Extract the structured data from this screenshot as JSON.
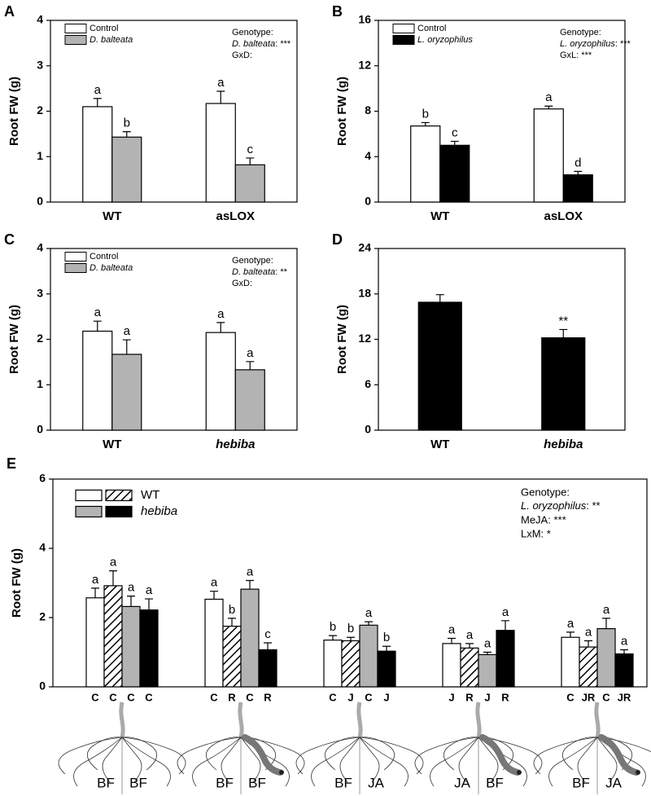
{
  "chart_data": [
    {
      "type": "bar",
      "panel": "A",
      "ylabel": "Root FW (g)",
      "categories": [
        "WT",
        "asLOX"
      ],
      "category_italic": [
        false,
        false
      ],
      "ylim": [
        0,
        4
      ],
      "yticks": [
        0,
        1,
        2,
        3,
        4
      ],
      "series": [
        {
          "name": "Control",
          "color": "#ffffff",
          "values": [
            2.1,
            2.17
          ],
          "errors": [
            0.18,
            0.27
          ],
          "letters": [
            "a",
            "a"
          ]
        },
        {
          "name": "D. balteata",
          "italic": true,
          "color": "#b3b3b3",
          "values": [
            1.43,
            0.82
          ],
          "errors": [
            0.12,
            0.15
          ],
          "letters": [
            "b",
            "c"
          ]
        }
      ],
      "annotations": [
        "Genotype:",
        [
          "D. balteata",
          ": ***"
        ],
        "GxD:"
      ]
    },
    {
      "type": "bar",
      "panel": "B",
      "ylabel": "Root FW (g)",
      "categories": [
        "WT",
        "asLOX"
      ],
      "category_italic": [
        false,
        false
      ],
      "ylim": [
        0,
        16
      ],
      "yticks": [
        0,
        4,
        8,
        12,
        16
      ],
      "series": [
        {
          "name": "Control",
          "color": "#ffffff",
          "values": [
            6.7,
            8.2
          ],
          "errors": [
            0.3,
            0.25
          ],
          "letters": [
            "b",
            "a"
          ]
        },
        {
          "name": "L. oryzophilus",
          "italic": true,
          "color": "#000000",
          "values": [
            5.0,
            2.4
          ],
          "errors": [
            0.35,
            0.3
          ],
          "letters": [
            "c",
            "d"
          ]
        }
      ],
      "annotations": [
        "Genotype:",
        [
          "L. oryzophilus",
          ": ***"
        ],
        "GxL: ***"
      ]
    },
    {
      "type": "bar",
      "panel": "C",
      "ylabel": "Root FW (g)",
      "categories": [
        "WT",
        "hebiba"
      ],
      "category_italic": [
        false,
        true
      ],
      "ylim": [
        0,
        4
      ],
      "yticks": [
        0,
        1,
        2,
        3,
        4
      ],
      "series": [
        {
          "name": "Control",
          "color": "#ffffff",
          "values": [
            2.18,
            2.15
          ],
          "errors": [
            0.22,
            0.22
          ],
          "letters": [
            "a",
            "a"
          ]
        },
        {
          "name": "D. balteata",
          "italic": true,
          "color": "#b3b3b3",
          "values": [
            1.67,
            1.33
          ],
          "errors": [
            0.32,
            0.18
          ],
          "letters": [
            "a",
            "a"
          ]
        }
      ],
      "annotations": [
        "Genotype:",
        [
          "D. balteata",
          ": **"
        ],
        "GxD:"
      ]
    },
    {
      "type": "bar",
      "panel": "D",
      "ylabel": "Root FW (g)",
      "categories": [
        "WT",
        "hebiba"
      ],
      "category_italic": [
        false,
        true
      ],
      "ylim": [
        0,
        24
      ],
      "yticks": [
        0,
        6,
        12,
        18,
        24
      ],
      "series": [
        {
          "color": "#000000",
          "values": [
            16.9,
            12.2
          ],
          "errors": [
            1.0,
            1.1
          ],
          "letters": [
            null,
            "**"
          ]
        }
      ]
    },
    {
      "type": "bar",
      "panel": "E",
      "ylabel": "Root FW (g)",
      "ylim": [
        0,
        6
      ],
      "yticks": [
        0,
        2,
        4,
        6
      ],
      "legend": [
        {
          "label": "WT"
        },
        {
          "label": "hebiba",
          "italic": true
        }
      ],
      "series": [
        {
          "color": "#ffffff",
          "values": [
            2.57,
            2.53,
            1.35,
            1.25,
            1.43
          ],
          "errors": [
            0.28,
            0.23,
            0.13,
            0.15,
            0.15
          ],
          "letters": [
            "a",
            "a",
            "b",
            "a",
            "a"
          ],
          "tick_labels": [
            "C",
            "C",
            "C",
            "J",
            "C"
          ]
        },
        {
          "color": "#ffffff",
          "pattern": "hatch",
          "values": [
            2.92,
            1.75,
            1.33,
            1.12,
            1.15
          ],
          "errors": [
            0.43,
            0.23,
            0.1,
            0.13,
            0.18
          ],
          "letters": [
            "a",
            "b",
            "b",
            "a",
            "a"
          ],
          "tick_labels": [
            "C",
            "R",
            "J",
            "R",
            "JR"
          ]
        },
        {
          "color": "#b3b3b3",
          "values": [
            2.32,
            2.82,
            1.78,
            0.93,
            1.68
          ],
          "errors": [
            0.3,
            0.25,
            0.1,
            0.07,
            0.3
          ],
          "letters": [
            "a",
            "a",
            "a",
            "a",
            "a"
          ],
          "tick_labels": [
            "C",
            "C",
            "C",
            "J",
            "C"
          ]
        },
        {
          "color": "#000000",
          "values": [
            2.22,
            1.07,
            1.03,
            1.63,
            0.95
          ],
          "errors": [
            0.32,
            0.2,
            0.14,
            0.28,
            0.12
          ],
          "letters": [
            "a",
            "c",
            "b",
            "a",
            "a"
          ],
          "tick_labels": [
            "C",
            "R",
            "J",
            "R",
            "JR"
          ]
        }
      ],
      "annotations": [
        "Genotype:",
        [
          "L. oryzophilus",
          ": **"
        ],
        "MeJA: ***",
        "LxM: *"
      ],
      "treatments": [
        [
          "BF",
          "BF"
        ],
        [
          "BF",
          "BF"
        ],
        [
          "BF",
          "JA"
        ],
        [
          "JA",
          "BF"
        ],
        [
          "BF",
          "JA"
        ]
      ]
    }
  ]
}
